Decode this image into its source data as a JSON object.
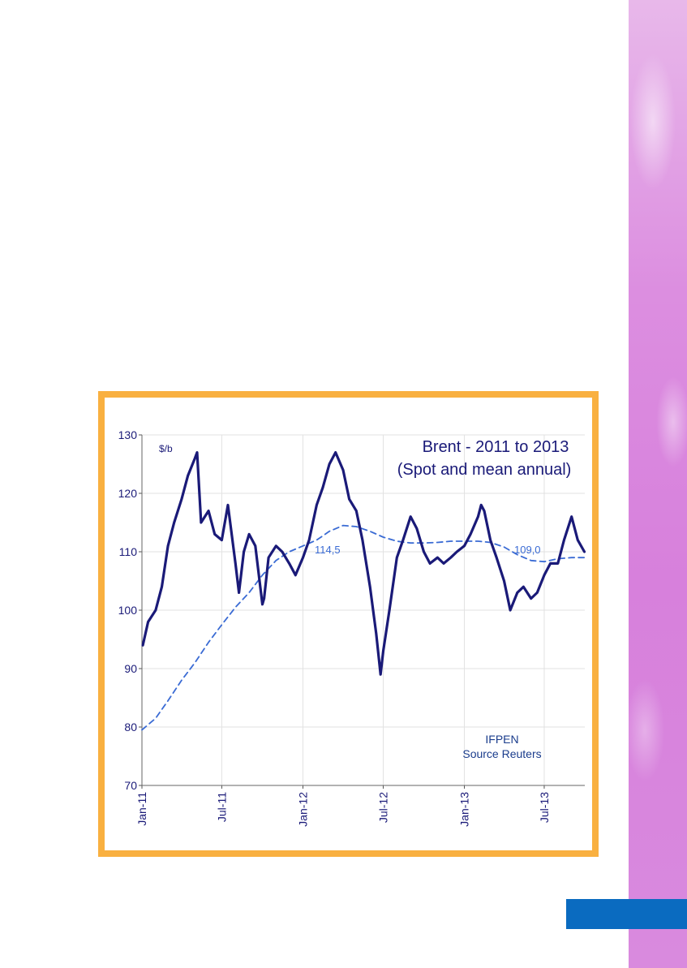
{
  "decor": {
    "side_art_color": "#d780dc",
    "blue_bar_color": "#0a6bc0",
    "frame_color": "#f9b040"
  },
  "chart_data": {
    "type": "line",
    "title_lines": [
      "Brent - 2011 to 2013",
      "(Spot and mean annual)"
    ],
    "unit_label": "$/b",
    "annotations": [
      "114,5",
      "109,0"
    ],
    "source_lines": [
      "IFPEN",
      "Source Reuters"
    ],
    "ylim": [
      70,
      130
    ],
    "yticks": [
      "130",
      "120",
      "110",
      "100",
      "90",
      "80",
      "70"
    ],
    "xlim": [
      "2011-01-01",
      "2013-10-01"
    ],
    "xticks": [
      "Jan-11",
      "Jul-11",
      "Jan-12",
      "Jul-12",
      "Jan-13",
      "Jul-13"
    ],
    "grid": true,
    "legend": "none",
    "series": [
      {
        "style": "solid",
        "color": "#1a1a78",
        "x": [
          "2011-01-03",
          "2011-01-15",
          "2011-02-01",
          "2011-02-15",
          "2011-03-01",
          "2011-03-15",
          "2011-04-01",
          "2011-04-15",
          "2011-05-01",
          "2011-05-06",
          "2011-05-15",
          "2011-06-01",
          "2011-06-15",
          "2011-07-01",
          "2011-07-15",
          "2011-08-01",
          "2011-08-09",
          "2011-08-20",
          "2011-09-01",
          "2011-09-15",
          "2011-10-01",
          "2011-10-05",
          "2011-10-15",
          "2011-11-01",
          "2011-11-15",
          "2011-12-01",
          "2011-12-15",
          "2012-01-01",
          "2012-01-15",
          "2012-02-01",
          "2012-02-15",
          "2012-03-01",
          "2012-03-15",
          "2012-04-01",
          "2012-04-15",
          "2012-05-01",
          "2012-05-15",
          "2012-06-01",
          "2012-06-15",
          "2012-06-25",
          "2012-07-01",
          "2012-07-15",
          "2012-08-01",
          "2012-08-15",
          "2012-09-01",
          "2012-09-15",
          "2012-10-01",
          "2012-10-15",
          "2012-11-01",
          "2012-11-15",
          "2012-12-01",
          "2012-12-15",
          "2013-01-01",
          "2013-01-15",
          "2013-02-01",
          "2013-02-08",
          "2013-02-15",
          "2013-03-01",
          "2013-03-15",
          "2013-04-01",
          "2013-04-15",
          "2013-05-01",
          "2013-05-15",
          "2013-06-01",
          "2013-06-15",
          "2013-07-01",
          "2013-07-15",
          "2013-08-01",
          "2013-08-15",
          "2013-09-01",
          "2013-09-15",
          "2013-09-30"
        ],
        "values": [
          94,
          98,
          100,
          104,
          111,
          115,
          119,
          123,
          126,
          127,
          115,
          117,
          113,
          112,
          118,
          108,
          103,
          110,
          113,
          111,
          101,
          102,
          109,
          111,
          110,
          108,
          106,
          109,
          112,
          118,
          121,
          125,
          127,
          124,
          119,
          117,
          112,
          104,
          96,
          89,
          93,
          100,
          109,
          112,
          116,
          114,
          110,
          108,
          109,
          108,
          109,
          110,
          111,
          113,
          116,
          118,
          117,
          112,
          109,
          105,
          100,
          103,
          104,
          102,
          103,
          106,
          108,
          108,
          112,
          116,
          112,
          110
        ]
      },
      {
        "style": "dashed",
        "color": "#3a6bd4",
        "x": [
          "2011-01-01",
          "2011-02-01",
          "2011-03-01",
          "2011-04-01",
          "2011-05-01",
          "2011-06-01",
          "2011-07-01",
          "2011-08-01",
          "2011-09-01",
          "2011-10-01",
          "2011-11-01",
          "2011-12-01",
          "2012-01-01",
          "2012-02-01",
          "2012-03-01",
          "2012-04-01",
          "2012-05-01",
          "2012-06-01",
          "2012-07-01",
          "2012-08-01",
          "2012-09-01",
          "2012-10-01",
          "2012-11-01",
          "2012-12-01",
          "2013-01-01",
          "2013-02-01",
          "2013-03-01",
          "2013-04-01",
          "2013-05-01",
          "2013-06-01",
          "2013-07-01",
          "2013-08-01",
          "2013-09-01",
          "2013-10-01"
        ],
        "values": [
          79.5,
          81.5,
          84.5,
          88,
          91,
          94.5,
          97.5,
          100.5,
          103,
          106,
          108.5,
          110,
          111,
          112,
          113.5,
          114.5,
          114.3,
          113.5,
          112.5,
          111.8,
          111.5,
          111.5,
          111.6,
          111.8,
          111.8,
          111.8,
          111.6,
          110.8,
          109.5,
          108.5,
          108.3,
          108.8,
          109,
          109
        ]
      }
    ]
  }
}
